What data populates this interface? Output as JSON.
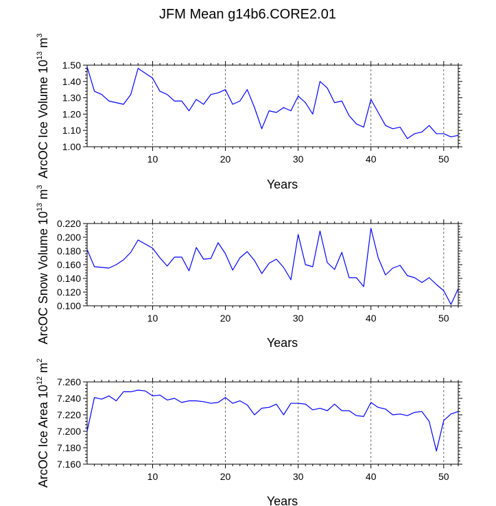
{
  "chart_data": [
    {
      "type": "line",
      "title": "JFM Mean g14b6.CORE2.01",
      "xlabel": "Years",
      "ylabel_parts": [
        "ArcOC Ice Volume 10",
        "13",
        " m",
        "3"
      ],
      "xlim": [
        1,
        52
      ],
      "ylim": [
        1.0,
        1.5
      ],
      "yticks": [
        "1.00",
        "1.10",
        "1.20",
        "1.30",
        "1.40",
        "1.50"
      ],
      "xticks": [
        "10",
        "20",
        "30",
        "40",
        "50"
      ],
      "dashed_x": [
        10,
        20,
        30,
        40,
        50
      ],
      "line_color": "#0000ff",
      "x": [
        1,
        2,
        3,
        4,
        5,
        6,
        7,
        8,
        9,
        10,
        11,
        12,
        13,
        14,
        15,
        16,
        17,
        18,
        19,
        20,
        21,
        22,
        23,
        24,
        25,
        26,
        27,
        28,
        29,
        30,
        31,
        32,
        33,
        34,
        35,
        36,
        37,
        38,
        39,
        40,
        41,
        42,
        43,
        44,
        45,
        46,
        47,
        48,
        49,
        50,
        51,
        52
      ],
      "values": [
        1.49,
        1.34,
        1.32,
        1.28,
        1.27,
        1.26,
        1.32,
        1.48,
        1.45,
        1.42,
        1.34,
        1.32,
        1.28,
        1.28,
        1.22,
        1.29,
        1.26,
        1.32,
        1.33,
        1.35,
        1.26,
        1.28,
        1.35,
        1.24,
        1.11,
        1.22,
        1.21,
        1.24,
        1.22,
        1.31,
        1.27,
        1.2,
        1.4,
        1.36,
        1.27,
        1.28,
        1.19,
        1.14,
        1.12,
        1.29,
        1.21,
        1.13,
        1.11,
        1.12,
        1.05,
        1.08,
        1.09,
        1.13,
        1.08,
        1.08,
        1.06,
        1.07
      ]
    },
    {
      "type": "line",
      "xlabel": "Years",
      "ylabel_parts": [
        "ArcOC Snow Volume 10",
        "13",
        " m",
        "3"
      ],
      "xlim": [
        1,
        52
      ],
      "ylim": [
        0.1,
        0.22
      ],
      "yticks": [
        "0.100",
        "0.120",
        "0.140",
        "0.160",
        "0.180",
        "0.200",
        "0.220"
      ],
      "xticks": [
        "10",
        "20",
        "30",
        "40",
        "50"
      ],
      "dashed_x": [
        10,
        50
      ],
      "line_color": "#0000ff",
      "x": [
        1,
        2,
        3,
        4,
        5,
        6,
        7,
        8,
        9,
        10,
        11,
        12,
        13,
        14,
        15,
        16,
        17,
        18,
        19,
        20,
        21,
        22,
        23,
        24,
        25,
        26,
        27,
        28,
        29,
        30,
        31,
        32,
        33,
        34,
        35,
        36,
        37,
        38,
        39,
        40,
        41,
        42,
        43,
        44,
        45,
        46,
        47,
        48,
        49,
        50,
        51,
        52
      ],
      "values": [
        0.182,
        0.157,
        0.156,
        0.155,
        0.16,
        0.167,
        0.178,
        0.196,
        0.19,
        0.184,
        0.17,
        0.158,
        0.171,
        0.171,
        0.151,
        0.185,
        0.168,
        0.169,
        0.192,
        0.176,
        0.152,
        0.17,
        0.179,
        0.166,
        0.147,
        0.162,
        0.168,
        0.156,
        0.138,
        0.204,
        0.16,
        0.157,
        0.209,
        0.163,
        0.153,
        0.178,
        0.141,
        0.141,
        0.128,
        0.213,
        0.17,
        0.145,
        0.155,
        0.159,
        0.144,
        0.141,
        0.134,
        0.141,
        0.131,
        0.122,
        0.102,
        0.125
      ]
    },
    {
      "type": "line",
      "xlabel": "Years",
      "ylabel_parts": [
        "ArcOC Ice Area 10",
        "12",
        " m",
        "2"
      ],
      "xlim": [
        1,
        52
      ],
      "ylim": [
        7.16,
        7.26
      ],
      "yticks": [
        "7.160",
        "7.180",
        "7.200",
        "7.220",
        "7.240",
        "7.260"
      ],
      "xticks": [
        "10",
        "20",
        "30",
        "40",
        "50"
      ],
      "dashed_x": [
        10,
        20,
        30,
        40,
        50
      ],
      "line_color": "#0000ff",
      "x": [
        1,
        2,
        3,
        4,
        5,
        6,
        7,
        8,
        9,
        10,
        11,
        12,
        13,
        14,
        15,
        16,
        17,
        18,
        19,
        20,
        21,
        22,
        23,
        24,
        25,
        26,
        27,
        28,
        29,
        30,
        31,
        32,
        33,
        34,
        35,
        36,
        37,
        38,
        39,
        40,
        41,
        42,
        43,
        44,
        45,
        46,
        47,
        48,
        49,
        50,
        51,
        52
      ],
      "values": [
        7.2,
        7.241,
        7.239,
        7.243,
        7.237,
        7.248,
        7.248,
        7.25,
        7.249,
        7.243,
        7.244,
        7.238,
        7.24,
        7.235,
        7.237,
        7.237,
        7.236,
        7.234,
        7.235,
        7.241,
        7.234,
        7.237,
        7.232,
        7.22,
        7.228,
        7.229,
        7.233,
        7.22,
        7.234,
        7.234,
        7.233,
        7.226,
        7.228,
        7.225,
        7.233,
        7.225,
        7.225,
        7.219,
        7.218,
        7.235,
        7.229,
        7.227,
        7.22,
        7.221,
        7.219,
        7.223,
        7.224,
        7.212,
        7.176,
        7.213,
        7.221,
        7.224
      ]
    }
  ]
}
